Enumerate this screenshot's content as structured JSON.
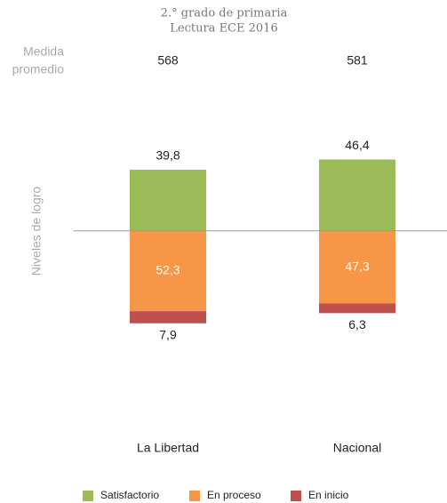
{
  "chart_data": {
    "type": "bar",
    "title": "2.° grado de primaria",
    "subtitle": "Lectura ECE 2016",
    "average_label": [
      "Medida",
      "promedio"
    ],
    "averages": [
      568,
      581
    ],
    "ylabel": "Niveles de logro",
    "categories": [
      "La Libertad",
      "Nacional"
    ],
    "ylim": [
      -80,
      60
    ],
    "series": [
      {
        "name": "Satisfactorio",
        "color": "#9bbb59",
        "values": [
          39.8,
          46.4
        ],
        "value_labels": [
          "39,8",
          "46,4"
        ]
      },
      {
        "name": "En proceso",
        "color": "#f79646",
        "values": [
          52.3,
          47.3
        ],
        "value_labels": [
          "52,3",
          "47,3"
        ]
      },
      {
        "name": "En inicio",
        "color": "#c0504d",
        "values": [
          7.9,
          6.3
        ],
        "value_labels": [
          "7,9",
          "6,3"
        ]
      }
    ],
    "legend": "bottom"
  }
}
